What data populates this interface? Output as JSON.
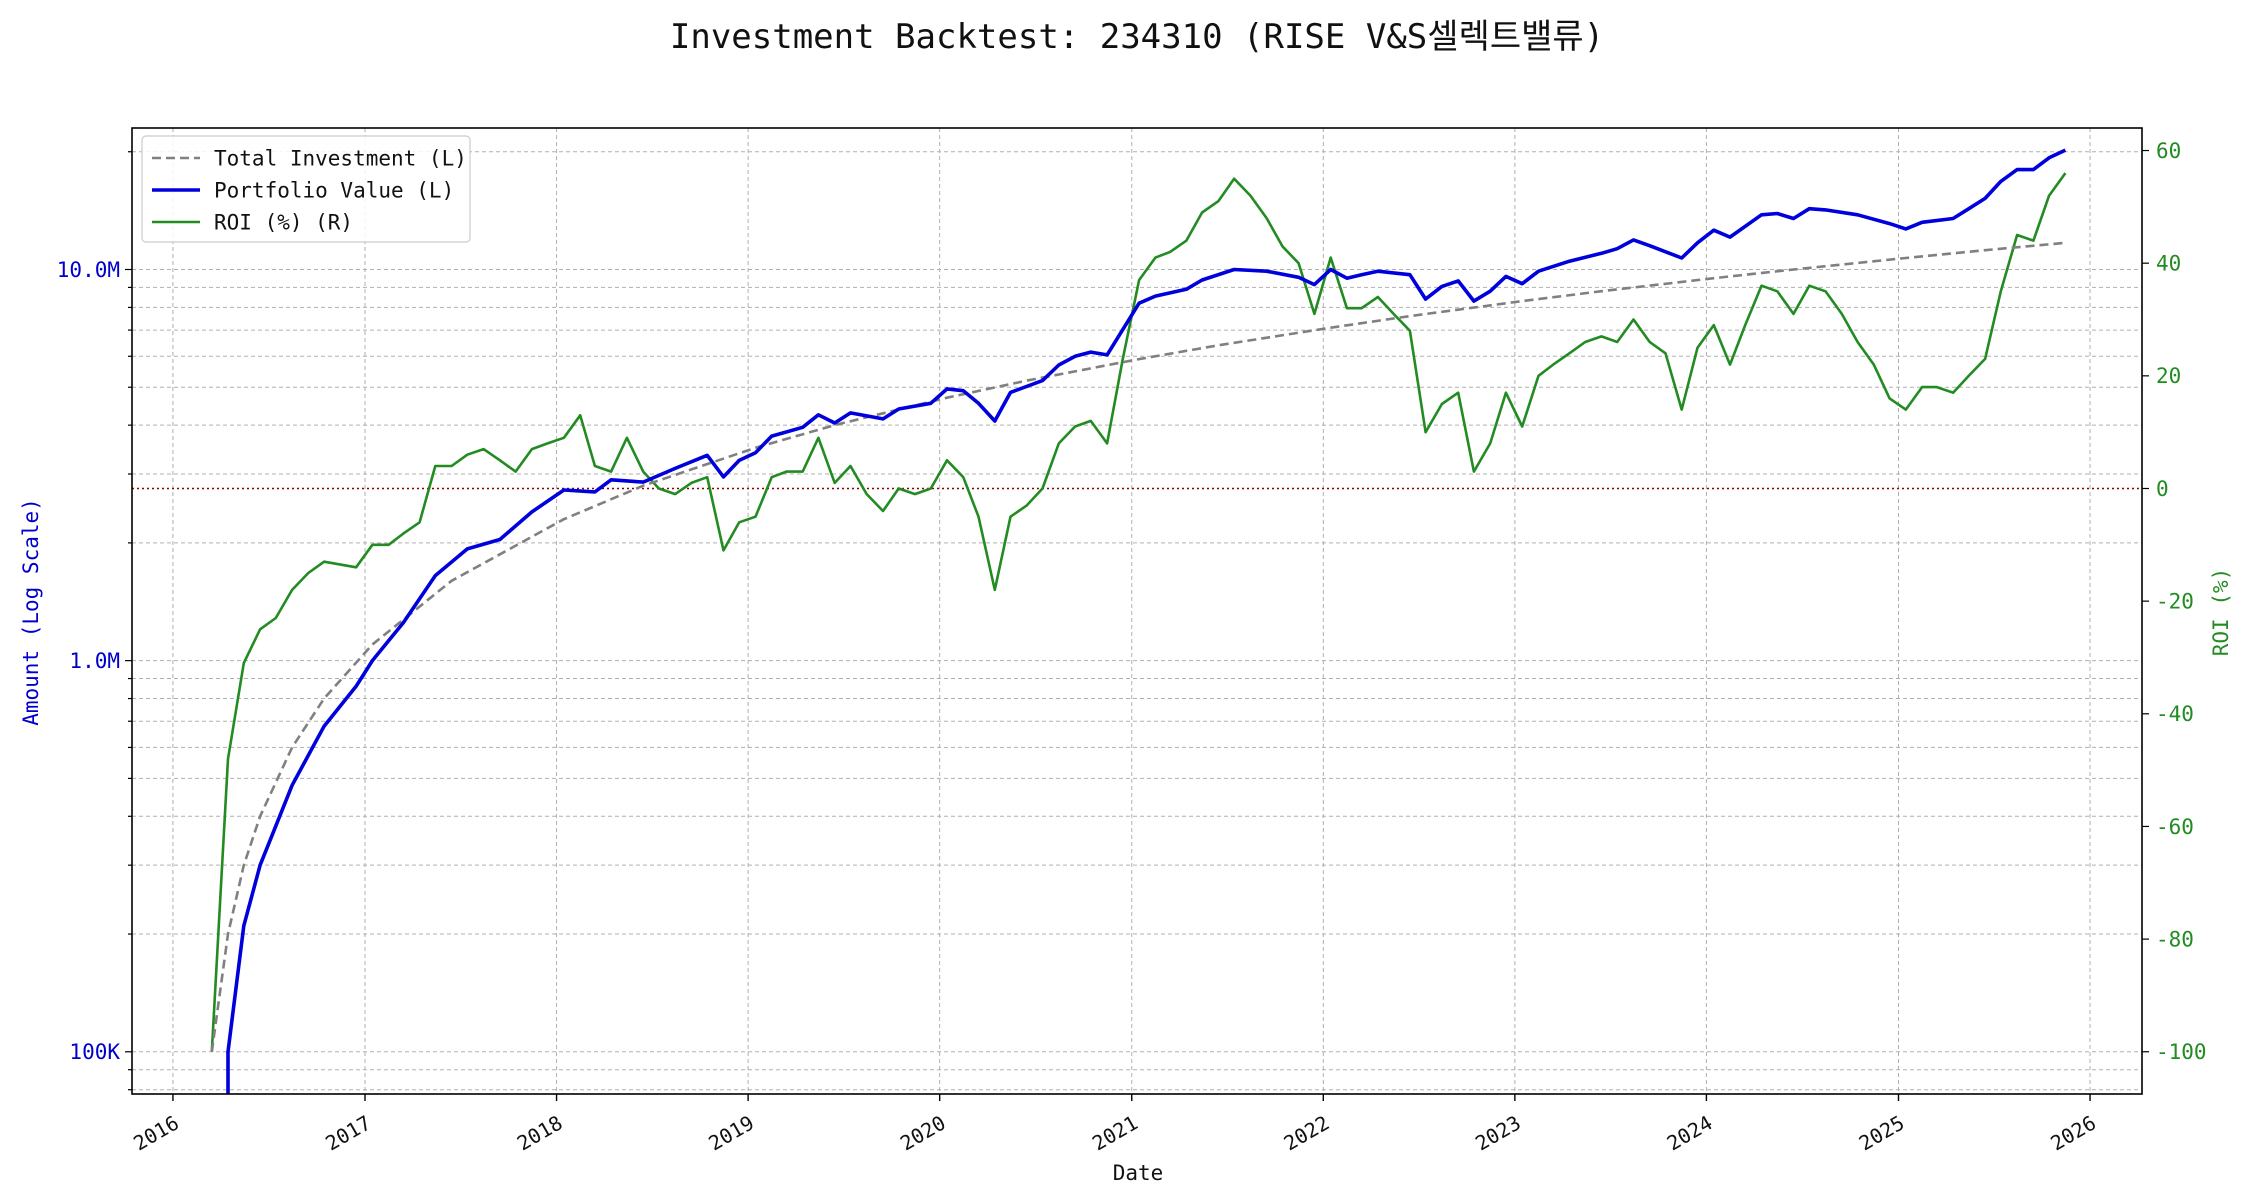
{
  "chart_data": {
    "type": "line",
    "title": "Investment Backtest: 234310 (RISE V&S셀렉트밸류)",
    "xlabel": "Date",
    "ylabel_left": "Amount (Log Scale)",
    "ylabel_right": "ROI (%)",
    "left_scale": "log",
    "grid": true,
    "legend_position": "upper-left",
    "x_ticks": [
      "2016",
      "2017",
      "2018",
      "2019",
      "2020",
      "2021",
      "2022",
      "2023",
      "2024",
      "2025",
      "2026"
    ],
    "x_range": [
      "2015-10-15",
      "2026-04-10"
    ],
    "left_ticks": [
      "100K",
      "1.0M",
      "10.0M"
    ],
    "left_tick_values": [
      100000,
      1000000,
      10000000
    ],
    "left_range": [
      78000,
      23000000
    ],
    "right_ticks": [
      "-100",
      "-80",
      "-60",
      "-40",
      "-20",
      "0",
      "20",
      "40",
      "60"
    ],
    "right_tick_values": [
      -100,
      -80,
      -60,
      -40,
      -20,
      0,
      20,
      40,
      60
    ],
    "right_range": [
      -107.5,
      64
    ],
    "reference_line": {
      "axis": "right",
      "value": 0,
      "color": "#8b0000"
    },
    "colors": {
      "investment": "#808080",
      "portfolio": "#0000dd",
      "roi": "#228b22"
    },
    "series": [
      {
        "name": "Total Investment (L)",
        "axis": "left",
        "style": "dashed",
        "points": [
          [
            "2016-03",
            100000
          ],
          [
            "2016-04",
            200000
          ],
          [
            "2016-05",
            300000
          ],
          [
            "2016-06",
            400000
          ],
          [
            "2016-08",
            600000
          ],
          [
            "2016-10",
            800000
          ],
          [
            "2017-01",
            1100000
          ],
          [
            "2017-06",
            1600000
          ],
          [
            "2018-01",
            2300000
          ],
          [
            "2018-06",
            2800000
          ],
          [
            "2019-01",
            3500000
          ],
          [
            "2019-06",
            4000000
          ],
          [
            "2020-01",
            4700000
          ],
          [
            "2020-06",
            5200000
          ],
          [
            "2021-01",
            5900000
          ],
          [
            "2021-06",
            6400000
          ],
          [
            "2022-01",
            7100000
          ],
          [
            "2022-06",
            7600000
          ],
          [
            "2023-01",
            8300000
          ],
          [
            "2023-06",
            8800000
          ],
          [
            "2024-01",
            9500000
          ],
          [
            "2024-06",
            10000000
          ],
          [
            "2025-01",
            10700000
          ],
          [
            "2025-06",
            11200000
          ],
          [
            "2025-11",
            11700000
          ]
        ]
      },
      {
        "name": "Portfolio Value (L)",
        "axis": "left",
        "style": "solid",
        "points": [
          [
            "2016-04",
            60000
          ],
          [
            "2016-04",
            100000
          ],
          [
            "2016-05",
            210000
          ],
          [
            "2016-06",
            300000
          ],
          [
            "2016-08",
            480000
          ],
          [
            "2016-10",
            680000
          ],
          [
            "2016-12",
            860000
          ],
          [
            "2017-01",
            1000000
          ],
          [
            "2017-03",
            1250000
          ],
          [
            "2017-05",
            1650000
          ],
          [
            "2017-07",
            1930000
          ],
          [
            "2017-09",
            2040000
          ],
          [
            "2017-11",
            2400000
          ],
          [
            "2018-01",
            2730000
          ],
          [
            "2018-03",
            2700000
          ],
          [
            "2018-04",
            2900000
          ],
          [
            "2018-06",
            2860000
          ],
          [
            "2018-08",
            3100000
          ],
          [
            "2018-10",
            3350000
          ],
          [
            "2018-11",
            2950000
          ],
          [
            "2018-12",
            3250000
          ],
          [
            "2019-01",
            3400000
          ],
          [
            "2019-02",
            3750000
          ],
          [
            "2019-04",
            3950000
          ],
          [
            "2019-05",
            4250000
          ],
          [
            "2019-06",
            4050000
          ],
          [
            "2019-07",
            4300000
          ],
          [
            "2019-09",
            4150000
          ],
          [
            "2019-10",
            4400000
          ],
          [
            "2019-12",
            4550000
          ],
          [
            "2020-01",
            4950000
          ],
          [
            "2020-02",
            4900000
          ],
          [
            "2020-03",
            4550000
          ],
          [
            "2020-04",
            4100000
          ],
          [
            "2020-05",
            4850000
          ],
          [
            "2020-07",
            5200000
          ],
          [
            "2020-08",
            5700000
          ],
          [
            "2020-09",
            6000000
          ],
          [
            "2020-10",
            6150000
          ],
          [
            "2020-11",
            6050000
          ],
          [
            "2021-01",
            8200000
          ],
          [
            "2021-02",
            8550000
          ],
          [
            "2021-04",
            8900000
          ],
          [
            "2021-05",
            9400000
          ],
          [
            "2021-07",
            10000000
          ],
          [
            "2021-09",
            9900000
          ],
          [
            "2021-11",
            9550000
          ],
          [
            "2021-12",
            9150000
          ],
          [
            "2022-01",
            10000000
          ],
          [
            "2022-02",
            9500000
          ],
          [
            "2022-03",
            9700000
          ],
          [
            "2022-04",
            9900000
          ],
          [
            "2022-06",
            9700000
          ],
          [
            "2022-07",
            8400000
          ],
          [
            "2022-08",
            9050000
          ],
          [
            "2022-09",
            9350000
          ],
          [
            "2022-10",
            8300000
          ],
          [
            "2022-11",
            8800000
          ],
          [
            "2022-12",
            9600000
          ],
          [
            "2023-01",
            9200000
          ],
          [
            "2023-02",
            9900000
          ],
          [
            "2023-04",
            10500000
          ],
          [
            "2023-06",
            11000000
          ],
          [
            "2023-07",
            11300000
          ],
          [
            "2023-08",
            11900000
          ],
          [
            "2023-09",
            11500000
          ],
          [
            "2023-11",
            10700000
          ],
          [
            "2023-12",
            11700000
          ],
          [
            "2024-01",
            12600000
          ],
          [
            "2024-02",
            12100000
          ],
          [
            "2024-04",
            13800000
          ],
          [
            "2024-05",
            13900000
          ],
          [
            "2024-06",
            13500000
          ],
          [
            "2024-07",
            14300000
          ],
          [
            "2024-08",
            14200000
          ],
          [
            "2024-10",
            13800000
          ],
          [
            "2024-12",
            13100000
          ],
          [
            "2025-01",
            12700000
          ],
          [
            "2025-02",
            13200000
          ],
          [
            "2025-04",
            13500000
          ],
          [
            "2025-05",
            14300000
          ],
          [
            "2025-06",
            15200000
          ],
          [
            "2025-07",
            16800000
          ],
          [
            "2025-08",
            18000000
          ],
          [
            "2025-09",
            18000000
          ],
          [
            "2025-10",
            19300000
          ],
          [
            "2025-11",
            20200000
          ]
        ]
      },
      {
        "name": "ROI (%) (R)",
        "axis": "right",
        "style": "solid",
        "points": [
          [
            "2016-03",
            -100
          ],
          [
            "2016-04",
            -48
          ],
          [
            "2016-05",
            -31
          ],
          [
            "2016-06",
            -25
          ],
          [
            "2016-07",
            -23
          ],
          [
            "2016-08",
            -18
          ],
          [
            "2016-09",
            -15
          ],
          [
            "2016-10",
            -13
          ],
          [
            "2016-12",
            -14
          ],
          [
            "2017-01",
            -10
          ],
          [
            "2017-02",
            -10
          ],
          [
            "2017-03",
            -8
          ],
          [
            "2017-04",
            -6
          ],
          [
            "2017-05",
            4
          ],
          [
            "2017-06",
            4
          ],
          [
            "2017-07",
            6
          ],
          [
            "2017-08",
            7
          ],
          [
            "2017-09",
            5
          ],
          [
            "2017-10",
            3
          ],
          [
            "2017-11",
            7
          ],
          [
            "2017-12",
            8
          ],
          [
            "2018-01",
            9
          ],
          [
            "2018-02",
            13
          ],
          [
            "2018-03",
            4
          ],
          [
            "2018-04",
            3
          ],
          [
            "2018-05",
            9
          ],
          [
            "2018-06",
            3
          ],
          [
            "2018-07",
            0
          ],
          [
            "2018-08",
            -1
          ],
          [
            "2018-09",
            1
          ],
          [
            "2018-10",
            2
          ],
          [
            "2018-11",
            -11
          ],
          [
            "2018-12",
            -6
          ],
          [
            "2019-01",
            -5
          ],
          [
            "2019-02",
            2
          ],
          [
            "2019-03",
            3
          ],
          [
            "2019-04",
            3
          ],
          [
            "2019-05",
            9
          ],
          [
            "2019-06",
            1
          ],
          [
            "2019-07",
            4
          ],
          [
            "2019-08",
            -1
          ],
          [
            "2019-09",
            -4
          ],
          [
            "2019-10",
            0
          ],
          [
            "2019-11",
            -1
          ],
          [
            "2019-12",
            0
          ],
          [
            "2020-01",
            5
          ],
          [
            "2020-02",
            2
          ],
          [
            "2020-03",
            -5
          ],
          [
            "2020-04",
            -18
          ],
          [
            "2020-05",
            -5
          ],
          [
            "2020-06",
            -3
          ],
          [
            "2020-07",
            0
          ],
          [
            "2020-08",
            8
          ],
          [
            "2020-09",
            11
          ],
          [
            "2020-10",
            12
          ],
          [
            "2020-11",
            8
          ],
          [
            "2020-12",
            23
          ],
          [
            "2021-01",
            37
          ],
          [
            "2021-02",
            41
          ],
          [
            "2021-03",
            42
          ],
          [
            "2021-04",
            44
          ],
          [
            "2021-05",
            49
          ],
          [
            "2021-06",
            51
          ],
          [
            "2021-07",
            55
          ],
          [
            "2021-08",
            52
          ],
          [
            "2021-09",
            48
          ],
          [
            "2021-10",
            43
          ],
          [
            "2021-11",
            40
          ],
          [
            "2021-12",
            31
          ],
          [
            "2022-01",
            41
          ],
          [
            "2022-02",
            32
          ],
          [
            "2022-03",
            32
          ],
          [
            "2022-04",
            34
          ],
          [
            "2022-05",
            31
          ],
          [
            "2022-06",
            28
          ],
          [
            "2022-07",
            10
          ],
          [
            "2022-08",
            15
          ],
          [
            "2022-09",
            17
          ],
          [
            "2022-10",
            3
          ],
          [
            "2022-11",
            8
          ],
          [
            "2022-12",
            17
          ],
          [
            "2023-01",
            11
          ],
          [
            "2023-02",
            20
          ],
          [
            "2023-03",
            22
          ],
          [
            "2023-04",
            24
          ],
          [
            "2023-05",
            26
          ],
          [
            "2023-06",
            27
          ],
          [
            "2023-07",
            26
          ],
          [
            "2023-08",
            30
          ],
          [
            "2023-09",
            26
          ],
          [
            "2023-10",
            24
          ],
          [
            "2023-11",
            14
          ],
          [
            "2023-12",
            25
          ],
          [
            "2024-01",
            29
          ],
          [
            "2024-02",
            22
          ],
          [
            "2024-03",
            29
          ],
          [
            "2024-04",
            36
          ],
          [
            "2024-05",
            35
          ],
          [
            "2024-06",
            31
          ],
          [
            "2024-07",
            36
          ],
          [
            "2024-08",
            35
          ],
          [
            "2024-09",
            31
          ],
          [
            "2024-10",
            26
          ],
          [
            "2024-11",
            22
          ],
          [
            "2024-12",
            16
          ],
          [
            "2025-01",
            14
          ],
          [
            "2025-02",
            18
          ],
          [
            "2025-03",
            18
          ],
          [
            "2025-04",
            17
          ],
          [
            "2025-05",
            20
          ],
          [
            "2025-06",
            23
          ],
          [
            "2025-07",
            35
          ],
          [
            "2025-08",
            45
          ],
          [
            "2025-09",
            44
          ],
          [
            "2025-10",
            52
          ],
          [
            "2025-11",
            56
          ]
        ]
      }
    ]
  }
}
